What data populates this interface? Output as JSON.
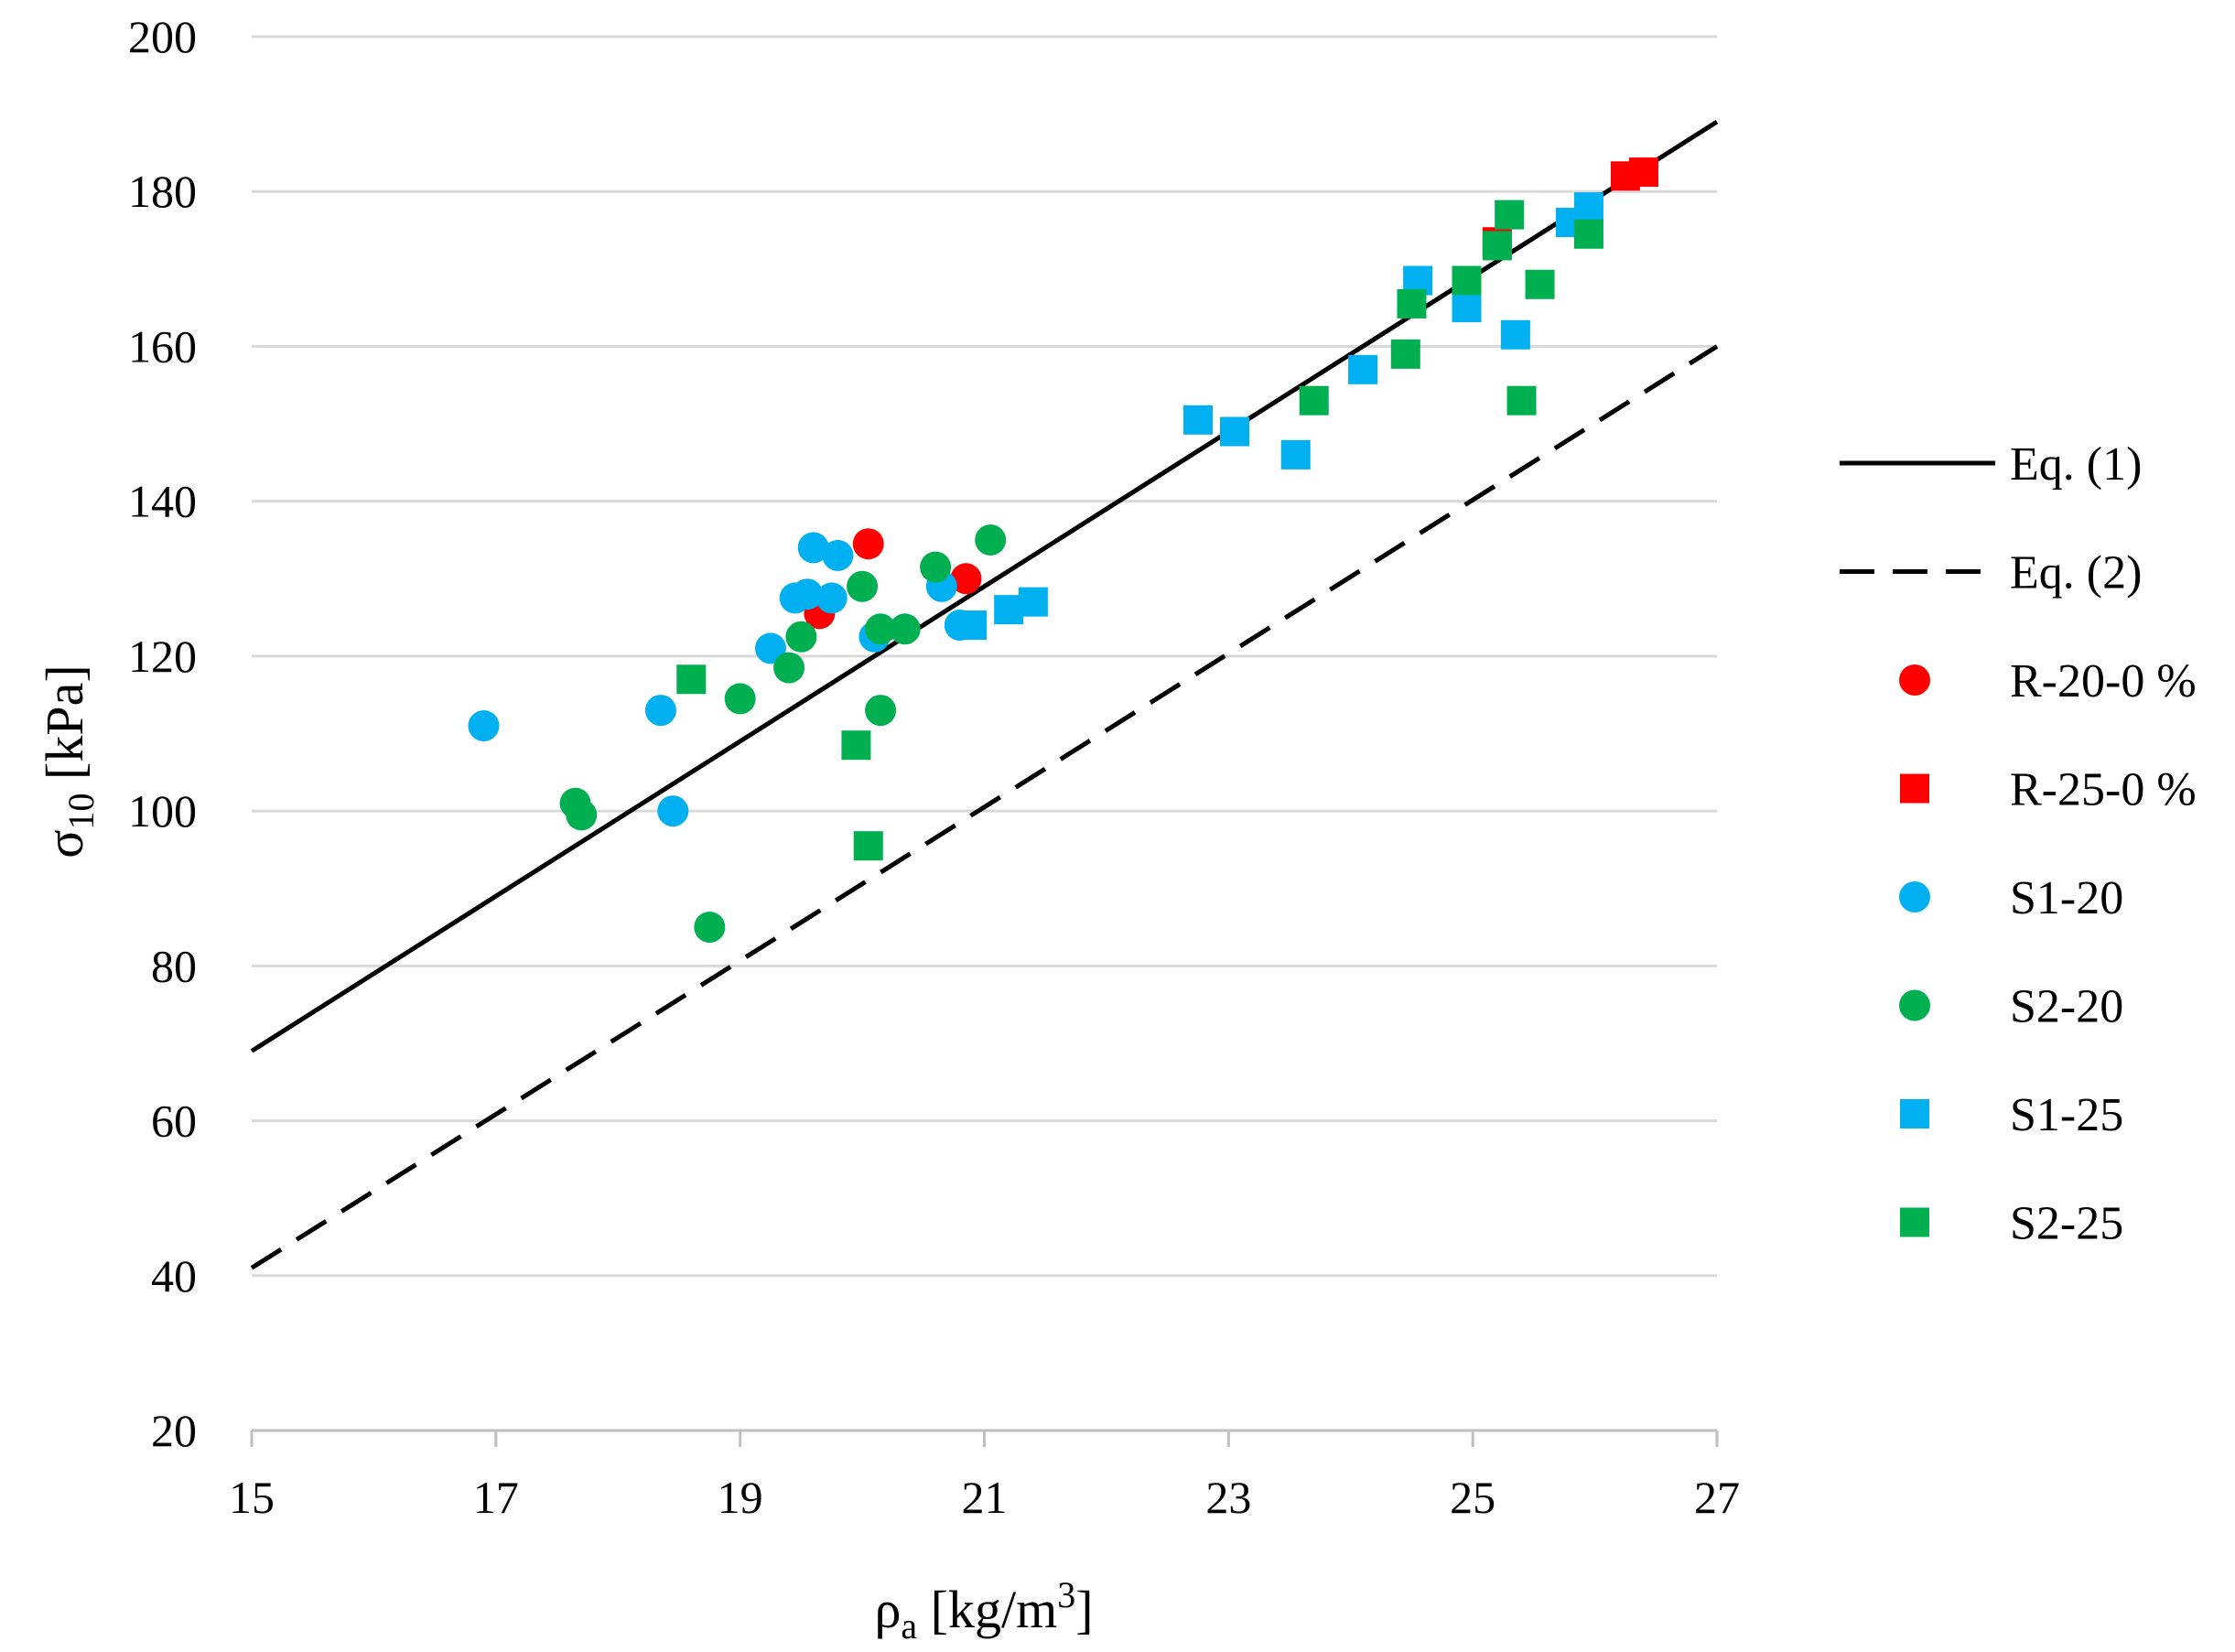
{
  "chart_data": {
    "type": "scatter",
    "title": "",
    "xlabel": "ρa [kg/m3]",
    "xlabel_main": "ρ",
    "xlabel_sub": "a",
    "xlabel_unit_pre": " [kg/m",
    "xlabel_unit_sup": "3",
    "xlabel_unit_post": "]",
    "ylabel": "σ10 [kPa]",
    "ylabel_main": "σ",
    "ylabel_sub": "10",
    "ylabel_unit": " [kPa]",
    "xlim": [
      15,
      27
    ],
    "ylim": [
      20,
      200
    ],
    "xticks": [
      "15",
      "17",
      "19",
      "21",
      "23",
      "25",
      "27"
    ],
    "yticks": [
      "20",
      "40",
      "60",
      "80",
      "100",
      "120",
      "140",
      "160",
      "180",
      "200"
    ],
    "grid": true,
    "legend_position": "right",
    "lines": [
      {
        "name": "Eq. (1)",
        "style": "solid",
        "color": "#000000",
        "x": [
          15,
          27
        ],
        "y": [
          69,
          189
        ]
      },
      {
        "name": "Eq. (2)",
        "style": "dashed",
        "color": "#000000",
        "x": [
          15,
          27
        ],
        "y": [
          41,
          160
        ]
      }
    ],
    "series": [
      {
        "name": "R-20-0 %",
        "marker": "circle",
        "color": "#ff0000",
        "x": [
          19.65,
          20.05,
          20.85
        ],
        "y": [
          125.5,
          134.5,
          130
        ]
      },
      {
        "name": "R-25-0 %",
        "marker": "square",
        "color": "#ff0000",
        "x": [
          25.2,
          26.25,
          26.4
        ],
        "y": [
          173.5,
          182,
          182.5
        ]
      },
      {
        "name": "S1-20",
        "marker": "circle",
        "color": "#00b0f0",
        "x": [
          16.9,
          18.35,
          18.45,
          19.25,
          19.45,
          19.55,
          19.6,
          19.75,
          19.8,
          20.1,
          20.65,
          20.8
        ],
        "y": [
          111,
          113,
          100,
          121,
          127.5,
          128,
          134,
          127.5,
          133,
          122.5,
          129,
          124
        ]
      },
      {
        "name": "S2-20",
        "marker": "circle",
        "color": "#00b050",
        "x": [
          17.65,
          17.7,
          18.75,
          19.0,
          19.4,
          19.5,
          20.0,
          20.15,
          20.15,
          20.35,
          20.6,
          21.05
        ],
        "y": [
          101,
          99.5,
          85,
          114.5,
          118.5,
          122.5,
          129,
          113,
          123.5,
          123.5,
          131.5,
          135
        ]
      },
      {
        "name": "S1-25",
        "marker": "square",
        "color": "#00b0f0",
        "x": [
          20.9,
          21.2,
          21.4,
          22.75,
          23.05,
          23.55,
          24.1,
          24.55,
          24.95,
          25.35,
          25.8,
          25.95
        ],
        "y": [
          124,
          126,
          127,
          150.5,
          149,
          146,
          157,
          168.5,
          165,
          161.5,
          176,
          178
        ]
      },
      {
        "name": "S2-25",
        "marker": "square",
        "color": "#00b050",
        "x": [
          18.6,
          19.95,
          20.05,
          23.7,
          24.45,
          24.5,
          24.95,
          25.2,
          25.3,
          25.4,
          25.55,
          25.95
        ],
        "y": [
          117,
          108.5,
          95.5,
          153,
          159,
          165.5,
          168.5,
          173,
          177,
          153,
          168,
          174.5
        ]
      }
    ]
  }
}
